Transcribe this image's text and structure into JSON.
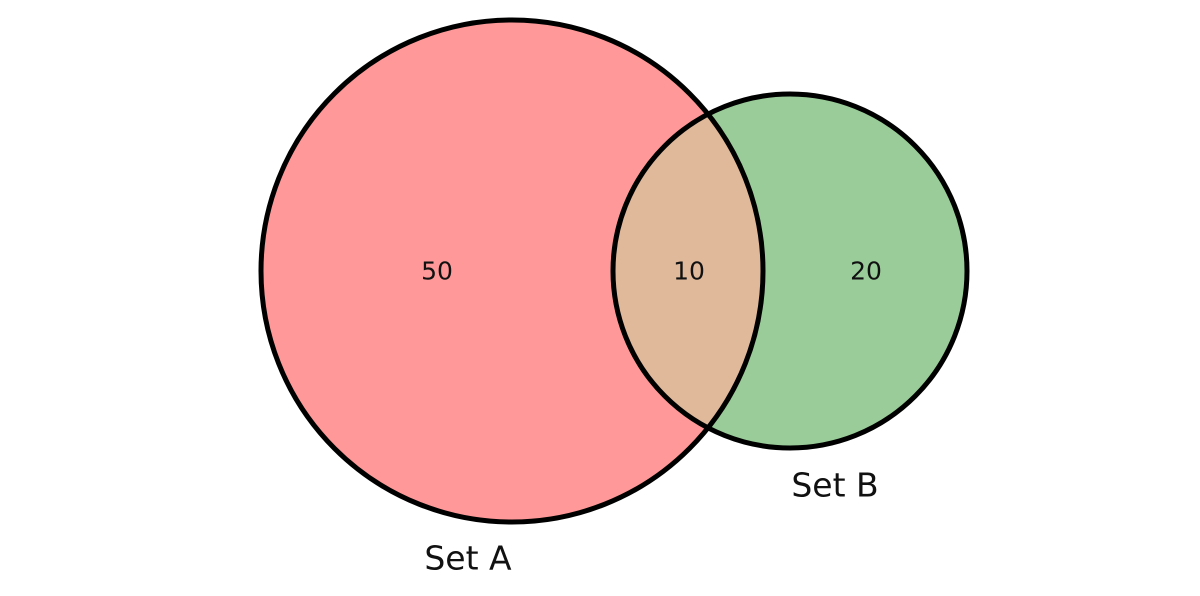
{
  "diagram": {
    "type": "venn2",
    "sets": [
      {
        "id": "A",
        "label": "Set A",
        "color": "#ff9999"
      },
      {
        "id": "B",
        "label": "Set B",
        "color": "#99cc99"
      }
    ],
    "overlap_color": "#e0b89a",
    "outline_color": "#000000",
    "regions": {
      "a_only": "50",
      "intersection": "10",
      "b_only": "20"
    }
  }
}
